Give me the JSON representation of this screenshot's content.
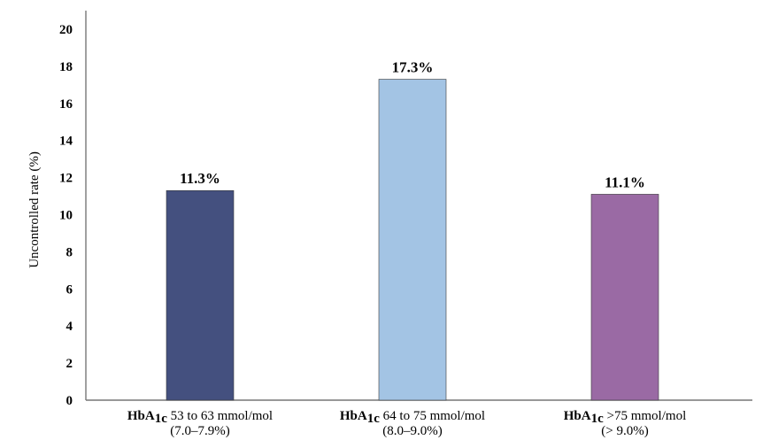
{
  "chart_data": {
    "type": "bar",
    "ylabel": "Uncontrolled rate (%)",
    "ylim": [
      0,
      21
    ],
    "yticks": [
      0,
      2,
      4,
      6,
      8,
      10,
      12,
      14,
      16,
      18,
      20
    ],
    "grid": false,
    "legend": "none",
    "categories": [
      {
        "prefix": "HbA",
        "subscript": "1c",
        "rest": " 53 to 63 mmol/mol",
        "sub": "(7.0–7.9%)"
      },
      {
        "prefix": "HbA",
        "subscript": "1c",
        "rest": " 64 to 75 mmol/mol",
        "sub": "(8.0–9.0%)"
      },
      {
        "prefix": "HbA",
        "subscript": "1c",
        "rest": " >75 mmol/mol",
        "sub": "(> 9.0%)"
      }
    ],
    "values": [
      11.3,
      17.3,
      11.1
    ],
    "data_labels": [
      "11.3%",
      "17.3%",
      "11.1%"
    ],
    "colors": [
      "#44507f",
      "#a3c4e4",
      "#9a6aa4"
    ]
  }
}
